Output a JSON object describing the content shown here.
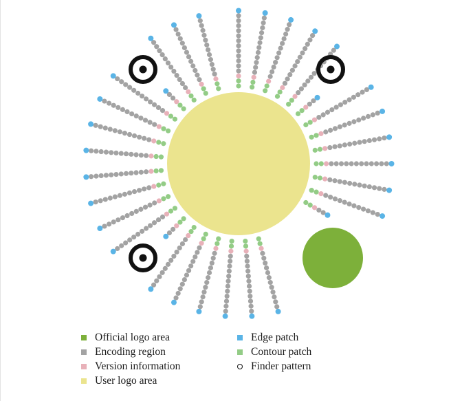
{
  "diagram": {
    "colors": {
      "official_logo": "#7db03a",
      "encoding": "#a3a3a3",
      "version": "#e8b1b9",
      "user_logo": "#ebe48e",
      "edge": "#5ab4e6",
      "contour": "#93cc86",
      "finder": "#111111"
    },
    "rays": [
      {
        "angle": -90,
        "kind": "long"
      },
      {
        "angle": -80,
        "kind": "long"
      },
      {
        "angle": -70,
        "kind": "long"
      },
      {
        "angle": -60,
        "kind": "long"
      },
      {
        "angle": -50,
        "kind": "long"
      },
      {
        "angle": -40,
        "kind": "short"
      },
      {
        "angle": -30,
        "kind": "long"
      },
      {
        "angle": -20,
        "kind": "long"
      },
      {
        "angle": -10,
        "kind": "long"
      },
      {
        "angle": 0,
        "kind": "long"
      },
      {
        "angle": 10,
        "kind": "long"
      },
      {
        "angle": 20,
        "kind": "long"
      },
      {
        "angle": 30,
        "kind": "short"
      },
      {
        "angle": 75,
        "kind": "long"
      },
      {
        "angle": 85,
        "kind": "long"
      },
      {
        "angle": 95,
        "kind": "long"
      },
      {
        "angle": 105,
        "kind": "long"
      },
      {
        "angle": 115,
        "kind": "long"
      },
      {
        "angle": 125,
        "kind": "long"
      },
      {
        "angle": 135,
        "kind": "short"
      },
      {
        "angle": 145,
        "kind": "long"
      },
      {
        "angle": 155,
        "kind": "long"
      },
      {
        "angle": 165,
        "kind": "long"
      },
      {
        "angle": 175,
        "kind": "long"
      },
      {
        "angle": 185,
        "kind": "long"
      },
      {
        "angle": 195,
        "kind": "long"
      },
      {
        "angle": 205,
        "kind": "long"
      },
      {
        "angle": 215,
        "kind": "long"
      },
      {
        "angle": 225,
        "kind": "short"
      },
      {
        "angle": 235,
        "kind": "long"
      },
      {
        "angle": 245,
        "kind": "long"
      },
      {
        "angle": 255,
        "kind": "long"
      }
    ]
  },
  "legend": [
    {
      "id": "official-logo-area",
      "label": "Official logo area",
      "color": "#7db03a",
      "shape": "square"
    },
    {
      "id": "encoding-region",
      "label": "Encoding region",
      "color": "#a3a3a3",
      "shape": "square"
    },
    {
      "id": "version-information",
      "label": "Version information",
      "color": "#e8b1b9",
      "shape": "square"
    },
    {
      "id": "user-logo-area",
      "label": "User logo area",
      "color": "#ebe48e",
      "shape": "square"
    },
    {
      "id": "edge-patch",
      "label": "Edge patch",
      "color": "#5ab4e6",
      "shape": "square"
    },
    {
      "id": "contour-patch",
      "label": "Contour patch",
      "color": "#93cc86",
      "shape": "square"
    },
    {
      "id": "finder-pattern",
      "label": "Finder pattern",
      "color": "#111111",
      "shape": "ring"
    }
  ]
}
